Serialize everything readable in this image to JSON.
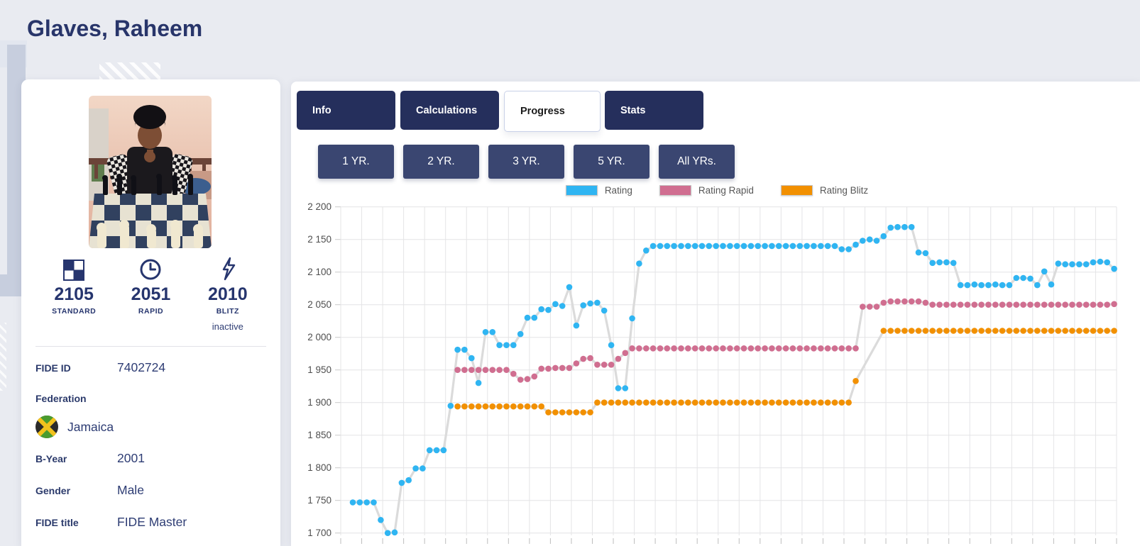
{
  "page": {
    "title": "Glaves, Raheem"
  },
  "sidebar": {
    "ratings": {
      "standard": {
        "icon": "board-icon",
        "value": "2105",
        "label": "STANDARD"
      },
      "rapid": {
        "icon": "clock-icon",
        "value": "2051",
        "label": "RAPID"
      },
      "blitz": {
        "icon": "lightning-icon",
        "value": "2010",
        "label": "BLITZ",
        "status": "inactive"
      }
    },
    "info": {
      "fide_id_label": "FIDE ID",
      "fide_id": "7402724",
      "federation_label": "Federation",
      "federation": "Jamaica",
      "byear_label": "B-Year",
      "byear": "2001",
      "gender_label": "Gender",
      "gender": "Male",
      "title_label": "FIDE title",
      "title": "FIDE Master"
    }
  },
  "tabs": [
    {
      "label": "Info",
      "active": false
    },
    {
      "label": "Calculations",
      "active": false
    },
    {
      "label": "Progress",
      "active": true
    },
    {
      "label": "Stats",
      "active": false
    }
  ],
  "year_buttons": [
    "1 YR.",
    "2 YR.",
    "3 YR.",
    "5 YR.",
    "All YRs."
  ],
  "colors": {
    "navy_text": "#28356a",
    "tab_bg": "#252f5c",
    "year_btn_bg": "#3a4671",
    "rating_blue": "#2fb5f2",
    "rating_rapid_pink": "#d06e90",
    "rating_blitz_orange": "#f29000",
    "connector_gray": "#dbdbdb",
    "page_bg": "#e9ebf1"
  },
  "chart_data": {
    "type": "line",
    "title": "",
    "xlabel": "",
    "ylabel": "",
    "ylim": [
      1700,
      2200
    ],
    "y_tick_step": 50,
    "y_tick_labels": [
      "2 200",
      "2 150",
      "2 100",
      "2 050",
      "2 000",
      "1 950",
      "1 900",
      "1 850",
      "1 800",
      "1 750",
      "1 700"
    ],
    "x_tick_labels_visible": false,
    "grid": true,
    "legend_position": "top-center",
    "x_unit": "month-index",
    "series": [
      {
        "name": "Rating",
        "color": "#2fb5f2",
        "segments": [
          {
            "start": 0,
            "values": [
              1747,
              1747,
              1747,
              1747,
              1720,
              1700,
              1701,
              1777,
              1781,
              1799,
              1799,
              1827,
              1827,
              1827,
              1895,
              1981,
              1981,
              1968,
              1930,
              2008,
              2008,
              1988,
              1988,
              1988,
              2005,
              2030,
              2030,
              2043,
              2042,
              2051,
              2048,
              2077,
              2018,
              2049,
              2052,
              2053,
              2041,
              1988,
              1922,
              1922,
              2029,
              2113,
              2133,
              2140,
              2140,
              2140,
              2140,
              2140,
              2140,
              2140,
              2140,
              2140,
              2140,
              2140,
              2140,
              2140,
              2140,
              2140,
              2140,
              2140,
              2140,
              2140,
              2140,
              2140,
              2140,
              2140,
              2140,
              2140,
              2140,
              2140,
              2135,
              2135,
              2142,
              2148,
              2150,
              2148,
              2155,
              2168,
              2169,
              2169,
              2169,
              2130,
              2129,
              2114,
              2115,
              2115,
              2114,
              2080,
              2080,
              2081,
              2080,
              2080,
              2081,
              2080,
              2080,
              2091,
              2091,
              2090,
              2080,
              2101,
              2081,
              2113,
              2112,
              2112,
              2112,
              2112,
              2115,
              2116,
              2115,
              2105
            ]
          }
        ]
      },
      {
        "name": "Rating Rapid",
        "color": "#d06e90",
        "segments": [
          {
            "start": 15,
            "values": [
              1950,
              1950,
              1950,
              1950,
              1950,
              1950,
              1950,
              1950,
              1944,
              1935,
              1936,
              1940,
              1952,
              1952,
              1953,
              1953,
              1953,
              1960,
              1967,
              1968,
              1958,
              1958,
              1958,
              1967,
              1976,
              1983,
              1983,
              1983,
              1983,
              1983,
              1983,
              1983,
              1983,
              1983,
              1983,
              1983,
              1983,
              1983,
              1983,
              1983,
              1983,
              1983,
              1983,
              1983,
              1983,
              1983,
              1983,
              1983,
              1983,
              1983,
              1983,
              1983,
              1983,
              1983,
              1983,
              1983,
              1983,
              1983,
              2047,
              2047,
              2047,
              2053,
              2055,
              2055,
              2055,
              2055,
              2055,
              2053,
              2050,
              2050,
              2050,
              2050,
              2050,
              2050,
              2050,
              2050,
              2050,
              2050,
              2050,
              2050,
              2050,
              2050,
              2050,
              2050,
              2050,
              2050,
              2050,
              2050,
              2050,
              2050,
              2050,
              2050,
              2050,
              2050,
              2051
            ]
          }
        ]
      },
      {
        "name": "Rating Blitz",
        "color": "#f29000",
        "segments": [
          {
            "start": 15,
            "values": [
              1894,
              1894,
              1894,
              1894,
              1894,
              1894,
              1894,
              1894,
              1894,
              1894,
              1894,
              1894,
              1894,
              1885,
              1885,
              1885,
              1885,
              1885,
              1885,
              1885,
              1900,
              1900,
              1900,
              1900,
              1900,
              1900,
              1900,
              1900,
              1900,
              1900,
              1900,
              1900,
              1900,
              1900,
              1900,
              1900,
              1900,
              1900,
              1900,
              1900,
              1900,
              1900,
              1900,
              1900,
              1900,
              1900,
              1900,
              1900,
              1900,
              1900,
              1900,
              1900,
              1900,
              1900,
              1900,
              1900,
              1900
            ]
          },
          {
            "start": 72,
            "values": [
              1933
            ]
          },
          {
            "start": 76,
            "values": [
              2010,
              2010,
              2010,
              2010,
              2010,
              2010,
              2010,
              2010,
              2010,
              2010,
              2010,
              2010,
              2010,
              2010,
              2010,
              2010,
              2010,
              2010,
              2010,
              2010,
              2010,
              2010,
              2010,
              2010,
              2010,
              2010,
              2010,
              2010,
              2010,
              2010,
              2010,
              2010,
              2010,
              2010
            ]
          }
        ]
      }
    ]
  }
}
